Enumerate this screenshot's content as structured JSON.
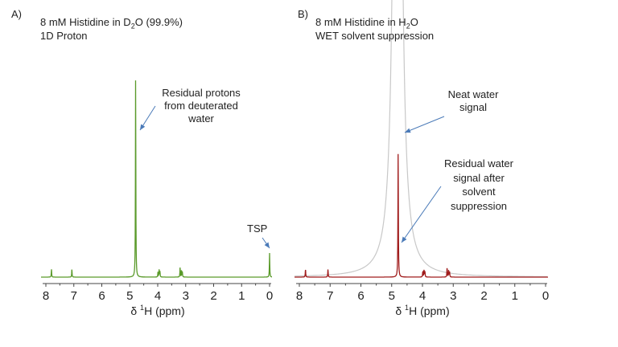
{
  "chart_data": [
    {
      "type": "line",
      "panel_label": "A)",
      "title_line1_pre": "8 mM Histidine in D",
      "title_line1_sub": "2",
      "title_line1_post": "O (99.9%)",
      "title_line2": "1D Proton",
      "xlabel_pre": "δ ",
      "xlabel_sup": "1",
      "xlabel_post": "H (ppm)",
      "xlim": [
        8,
        0
      ],
      "x_reversed": true,
      "xticks": [
        "8",
        "7",
        "6",
        "5",
        "4",
        "3",
        "2",
        "1",
        "0"
      ],
      "color": "#5a9a2a",
      "peaks_ppm_intensity": [
        [
          7.8,
          10
        ],
        [
          7.07,
          10
        ],
        [
          4.79,
          252
        ],
        [
          3.99,
          7
        ],
        [
          3.95,
          9
        ],
        [
          3.92,
          7
        ],
        [
          3.2,
          12
        ],
        [
          3.15,
          8
        ],
        [
          3.12,
          7
        ],
        [
          0.0,
          30
        ]
      ],
      "annotations": [
        {
          "lines": [
            "Residual protons",
            "from deuterated",
            "water"
          ]
        },
        {
          "lines": [
            "TSP"
          ]
        }
      ]
    },
    {
      "type": "line",
      "panel_label": "B)",
      "title_line1_pre": "8 mM Histidine in H",
      "title_line1_sub": "2",
      "title_line1_post": "O",
      "title_line2": "WET solvent suppression",
      "xlabel_pre": "δ ",
      "xlabel_sup": "1",
      "xlabel_post": "H (ppm)",
      "xlim": [
        8,
        0
      ],
      "x_reversed": true,
      "xticks": [
        "8",
        "7",
        "6",
        "5",
        "4",
        "3",
        "2",
        "1",
        "0"
      ],
      "color": "#a01c1c",
      "reference_color": "#c8c8c8",
      "peaks_ppm_intensity": [
        [
          7.8,
          10
        ],
        [
          7.07,
          10
        ],
        [
          4.79,
          155
        ],
        [
          3.99,
          7
        ],
        [
          3.95,
          9
        ],
        [
          3.92,
          7
        ],
        [
          3.2,
          12
        ],
        [
          3.15,
          8
        ],
        [
          3.12,
          7
        ]
      ],
      "reference_peak_ppm": 4.81,
      "annotations": [
        {
          "lines": [
            "Neat water",
            "signal"
          ]
        },
        {
          "lines": [
            "Residual water",
            "signal after",
            "solvent",
            "suppression"
          ]
        }
      ]
    }
  ]
}
